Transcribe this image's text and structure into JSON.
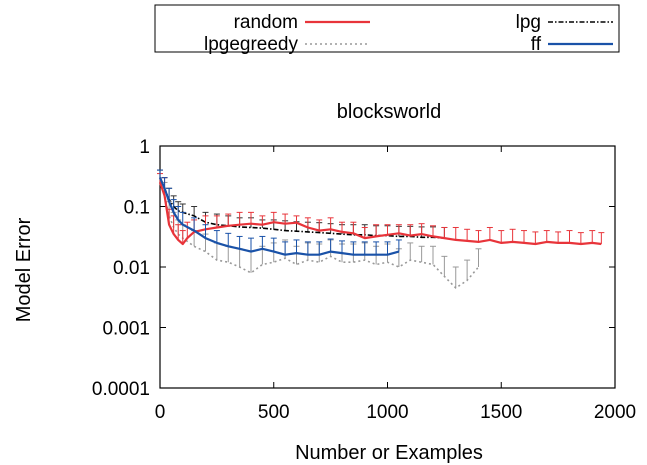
{
  "chart_data": {
    "type": "line",
    "title": "blocksworld",
    "xlabel": "Number or Examples",
    "ylabel": "Model Error",
    "xlim": [
      0,
      2000
    ],
    "ylim": [
      0.0001,
      1
    ],
    "yscale": "log",
    "xticks": [
      0,
      500,
      1000,
      1500,
      2000
    ],
    "xtick_labels": [
      "0",
      "500",
      "1000",
      "1500",
      "2000"
    ],
    "yticks": [
      0.0001,
      0.001,
      0.01,
      0.1,
      1
    ],
    "ytick_labels": [
      "0.0001",
      "0.001",
      "0.01",
      "0.1",
      "1"
    ],
    "grid": false,
    "legend_position": "top-center-outside",
    "series": [
      {
        "name": "random",
        "color": "#e8343a",
        "style": "solid",
        "x": [
          0,
          20,
          40,
          60,
          80,
          100,
          120,
          150,
          200,
          250,
          300,
          350,
          400,
          450,
          500,
          550,
          600,
          650,
          700,
          750,
          800,
          850,
          900,
          950,
          1000,
          1050,
          1100,
          1150,
          1200,
          1250,
          1300,
          1350,
          1400,
          1450,
          1500,
          1550,
          1600,
          1650,
          1700,
          1750,
          1800,
          1850,
          1900,
          1940
        ],
        "y": [
          0.25,
          0.15,
          0.05,
          0.035,
          0.028,
          0.024,
          0.03,
          0.038,
          0.042,
          0.045,
          0.048,
          0.05,
          0.052,
          0.05,
          0.055,
          0.052,
          0.054,
          0.045,
          0.04,
          0.042,
          0.038,
          0.036,
          0.03,
          0.032,
          0.034,
          0.036,
          0.033,
          0.035,
          0.032,
          0.03,
          0.028,
          0.027,
          0.026,
          0.028,
          0.025,
          0.026,
          0.025,
          0.024,
          0.026,
          0.025,
          0.025,
          0.024,
          0.025,
          0.024
        ],
        "error_upper": [
          0.35,
          0.3,
          0.09,
          0.07,
          0.05,
          0.04,
          0.055,
          0.06,
          0.07,
          0.07,
          0.075,
          0.08,
          0.08,
          0.07,
          0.08,
          0.075,
          0.07,
          0.065,
          0.06,
          0.065,
          0.055,
          0.055,
          0.045,
          0.05,
          0.05,
          0.05,
          0.05,
          0.052,
          0.048,
          0.045,
          0.045,
          0.042,
          0.04,
          0.045,
          0.04,
          0.042,
          0.04,
          0.038,
          0.04,
          0.038,
          0.04,
          0.037,
          0.04,
          0.037
        ]
      },
      {
        "name": "lpg",
        "color": "#000000",
        "style": "dash-dot",
        "x": [
          0,
          20,
          40,
          60,
          80,
          100,
          150,
          200,
          250,
          300,
          350,
          400,
          450,
          500,
          550,
          600,
          650,
          700,
          750,
          800,
          850,
          900,
          950,
          1000,
          1050,
          1100,
          1150,
          1200,
          1250
        ],
        "y": [
          0.3,
          0.2,
          0.13,
          0.1,
          0.085,
          0.08,
          0.07,
          0.055,
          0.05,
          0.048,
          0.046,
          0.045,
          0.044,
          0.042,
          0.04,
          0.039,
          0.038,
          0.037,
          0.036,
          0.035,
          0.034,
          0.034,
          0.033,
          0.033,
          0.032,
          0.032,
          0.031,
          0.031,
          0.03
        ],
        "error_upper": [
          0.4,
          0.3,
          0.2,
          0.15,
          0.12,
          0.11,
          0.1,
          0.08,
          0.075,
          0.07,
          0.065,
          0.065,
          0.06,
          0.06,
          0.058,
          0.056,
          0.055,
          0.054,
          0.052,
          0.05,
          0.05,
          0.05,
          0.048,
          0.048,
          0.047,
          0.047,
          0.046,
          0.046,
          0.045
        ]
      },
      {
        "name": "lpgegreedy",
        "color": "#999999",
        "style": "dotted",
        "x": [
          0,
          20,
          40,
          60,
          80,
          100,
          150,
          200,
          250,
          300,
          350,
          400,
          450,
          500,
          550,
          600,
          650,
          700,
          750,
          800,
          850,
          900,
          950,
          1000,
          1050,
          1100,
          1150,
          1200,
          1250,
          1300,
          1350,
          1400
        ],
        "y": [
          0.3,
          0.15,
          0.07,
          0.045,
          0.035,
          0.03,
          0.022,
          0.018,
          0.013,
          0.012,
          0.01,
          0.008,
          0.011,
          0.012,
          0.014,
          0.011,
          0.013,
          0.012,
          0.015,
          0.012,
          0.012,
          0.013,
          0.011,
          0.012,
          0.01,
          0.013,
          0.012,
          0.011,
          0.007,
          0.0045,
          0.006,
          0.01
        ],
        "error_upper": [
          0.4,
          0.25,
          0.12,
          0.08,
          0.06,
          0.05,
          0.04,
          0.035,
          0.025,
          0.022,
          0.02,
          0.018,
          0.022,
          0.025,
          0.028,
          0.022,
          0.025,
          0.024,
          0.028,
          0.024,
          0.024,
          0.025,
          0.022,
          0.024,
          0.02,
          0.025,
          0.022,
          0.022,
          0.015,
          0.01,
          0.013,
          0.02
        ]
      },
      {
        "name": "ff",
        "color": "#1a52a8",
        "style": "solid",
        "x": [
          0,
          20,
          40,
          60,
          80,
          100,
          150,
          200,
          250,
          300,
          350,
          400,
          450,
          500,
          550,
          600,
          650,
          700,
          750,
          800,
          850,
          900,
          950,
          1000,
          1050
        ],
        "y": [
          0.3,
          0.2,
          0.12,
          0.08,
          0.06,
          0.05,
          0.04,
          0.03,
          0.025,
          0.022,
          0.02,
          0.018,
          0.02,
          0.018,
          0.016,
          0.017,
          0.016,
          0.016,
          0.018,
          0.017,
          0.016,
          0.016,
          0.016,
          0.016,
          0.018
        ],
        "error_upper": [
          0.4,
          0.3,
          0.2,
          0.13,
          0.1,
          0.08,
          0.065,
          0.05,
          0.04,
          0.036,
          0.032,
          0.03,
          0.032,
          0.03,
          0.026,
          0.028,
          0.026,
          0.026,
          0.029,
          0.027,
          0.026,
          0.026,
          0.026,
          0.026,
          0.028
        ]
      }
    ]
  }
}
